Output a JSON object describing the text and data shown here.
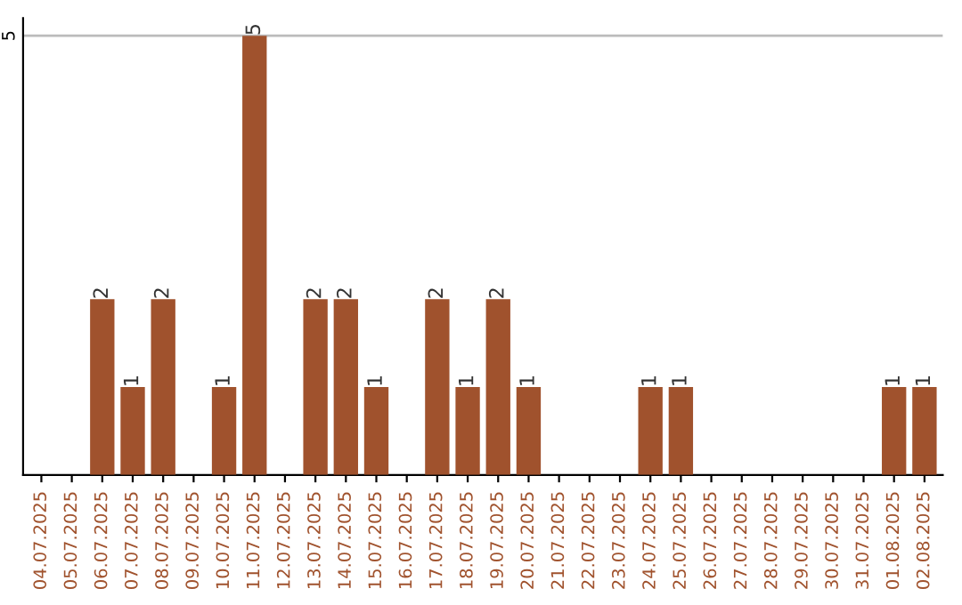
{
  "chart_data": {
    "type": "bar",
    "categories": [
      "04.07.2025",
      "05.07.2025",
      "06.07.2025",
      "07.07.2025",
      "08.07.2025",
      "09.07.2025",
      "10.07.2025",
      "11.07.2025",
      "12.07.2025",
      "13.07.2025",
      "14.07.2025",
      "15.07.2025",
      "16.07.2025",
      "17.07.2025",
      "18.07.2025",
      "19.07.2025",
      "20.07.2025",
      "21.07.2025",
      "22.07.2025",
      "23.07.2025",
      "24.07.2025",
      "25.07.2025",
      "26.07.2025",
      "27.07.2025",
      "28.07.2025",
      "29.07.2025",
      "30.07.2025",
      "31.07.2025",
      "01.08.2025",
      "02.08.2025"
    ],
    "values": [
      0,
      0,
      2,
      1,
      2,
      0,
      1,
      5,
      0,
      2,
      2,
      1,
      0,
      2,
      1,
      2,
      1,
      0,
      0,
      0,
      1,
      1,
      0,
      0,
      0,
      0,
      0,
      0,
      1,
      1
    ],
    "value_labels": [
      null,
      null,
      "2",
      "1",
      "2",
      null,
      "1",
      "5",
      null,
      "2",
      "2",
      "1",
      null,
      "2",
      "1",
      "2",
      "1",
      null,
      null,
      null,
      "1",
      "1",
      null,
      null,
      null,
      null,
      null,
      null,
      "1",
      "1"
    ],
    "color": "#a0522d",
    "ylim": [
      0,
      5.2
    ],
    "yticks": [
      5
    ],
    "grid": "y"
  }
}
